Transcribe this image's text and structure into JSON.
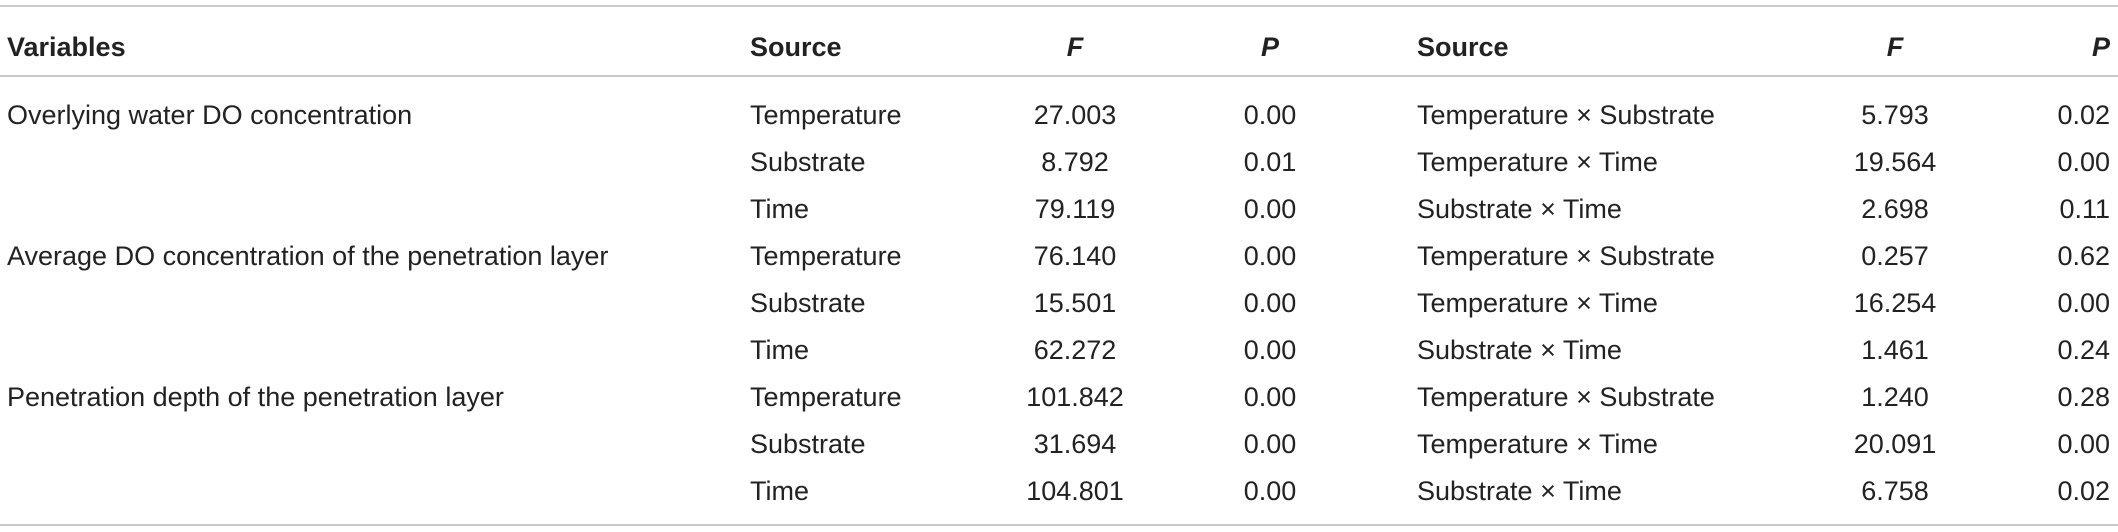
{
  "headers": {
    "variables": "Variables",
    "source1": "Source",
    "f1": "F",
    "p1": "P",
    "source2": "Source",
    "f2": "F",
    "p2": "P"
  },
  "rows": [
    {
      "variable": "Overlying water DO concentration",
      "source1": "Temperature",
      "f1": "27.003",
      "p1": "0.00",
      "source2": "Temperature × Substrate",
      "f2": "5.793",
      "p2": "0.02"
    },
    {
      "variable": "",
      "source1": "Substrate",
      "f1": "8.792",
      "p1": "0.01",
      "source2": "Temperature × Time",
      "f2": "19.564",
      "p2": "0.00"
    },
    {
      "variable": "",
      "source1": "Time",
      "f1": "79.119",
      "p1": "0.00",
      "source2": "Substrate × Time",
      "f2": "2.698",
      "p2": "0.11"
    },
    {
      "variable": "Average DO concentration of the penetration layer",
      "source1": "Temperature",
      "f1": "76.140",
      "p1": "0.00",
      "source2": "Temperature × Substrate",
      "f2": "0.257",
      "p2": "0.62"
    },
    {
      "variable": "",
      "source1": "Substrate",
      "f1": "15.501",
      "p1": "0.00",
      "source2": "Temperature × Time",
      "f2": "16.254",
      "p2": "0.00"
    },
    {
      "variable": "",
      "source1": "Time",
      "f1": "62.272",
      "p1": "0.00",
      "source2": "Substrate × Time",
      "f2": "1.461",
      "p2": "0.24"
    },
    {
      "variable": "Penetration depth of the penetration layer",
      "source1": "Temperature",
      "f1": "101.842",
      "p1": "0.00",
      "source2": "Temperature × Substrate",
      "f2": "1.240",
      "p2": "0.28"
    },
    {
      "variable": "",
      "source1": "Substrate",
      "f1": "31.694",
      "p1": "0.00",
      "source2": "Temperature × Time",
      "f2": "20.091",
      "p2": "0.00"
    },
    {
      "variable": "",
      "source1": "Time",
      "f1": "104.801",
      "p1": "0.00",
      "source2": "Substrate × Time",
      "f2": "6.758",
      "p2": "0.02"
    }
  ]
}
